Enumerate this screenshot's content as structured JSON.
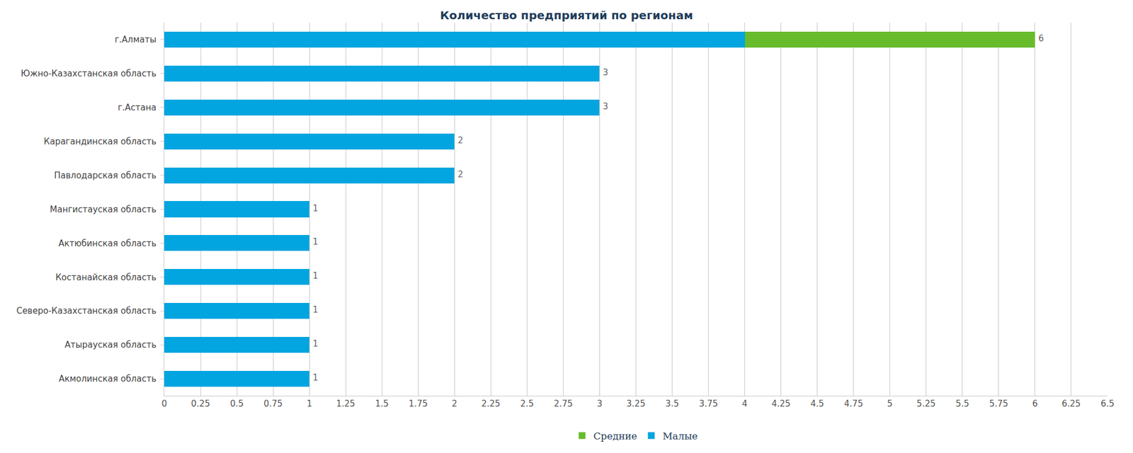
{
  "chart_data": {
    "type": "bar",
    "orientation": "horizontal",
    "stacked": true,
    "title": "Количество предприятий по регионам",
    "categories": [
      "г.Алматы",
      "Южно-Казахстанская область",
      "г.Астана",
      "Карагандинская область",
      "Павлодарская область",
      "Мангистауская область",
      "Актюбинская область",
      "Костанайская область",
      "Северо-Казахстанская область",
      "Атырауская область",
      "Акмолинская область"
    ],
    "series": [
      {
        "name": "Малые",
        "color": "#03a5e0",
        "values": [
          4,
          3,
          3,
          2,
          2,
          1,
          1,
          1,
          1,
          1,
          1
        ]
      },
      {
        "name": "Средние",
        "color": "#68bc2c",
        "values": [
          2,
          0,
          0,
          0,
          0,
          0,
          0,
          0,
          0,
          0,
          0
        ]
      }
    ],
    "totals": [
      6,
      3,
      3,
      2,
      2,
      1,
      1,
      1,
      1,
      1,
      1
    ],
    "xlim": [
      0,
      6.5
    ],
    "xticks": [
      0,
      0.25,
      0.5,
      0.75,
      1,
      1.25,
      1.5,
      1.75,
      2,
      2.25,
      2.5,
      2.75,
      3,
      3.25,
      3.5,
      3.75,
      4,
      4.25,
      4.5,
      4.75,
      5,
      5.25,
      5.5,
      5.75,
      6,
      6.25,
      6.5
    ],
    "grid": true,
    "legend": "bottom"
  }
}
